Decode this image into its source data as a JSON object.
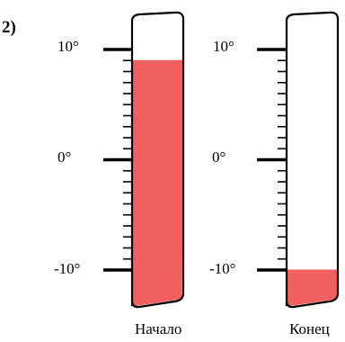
{
  "problem_number": "2)",
  "scale": {
    "min": -10,
    "max": 10,
    "minor_step": 1
  },
  "fill_color": "#f06060",
  "outline_color": "#000000",
  "thermometers": [
    {
      "id": "start",
      "label": "Начало",
      "reading": 9,
      "tick_labels": [
        "10°",
        "0°",
        "-10°"
      ]
    },
    {
      "id": "end",
      "label": "Конец",
      "reading": -10,
      "tick_labels": [
        "10°",
        "0°",
        "-10°"
      ]
    }
  ]
}
